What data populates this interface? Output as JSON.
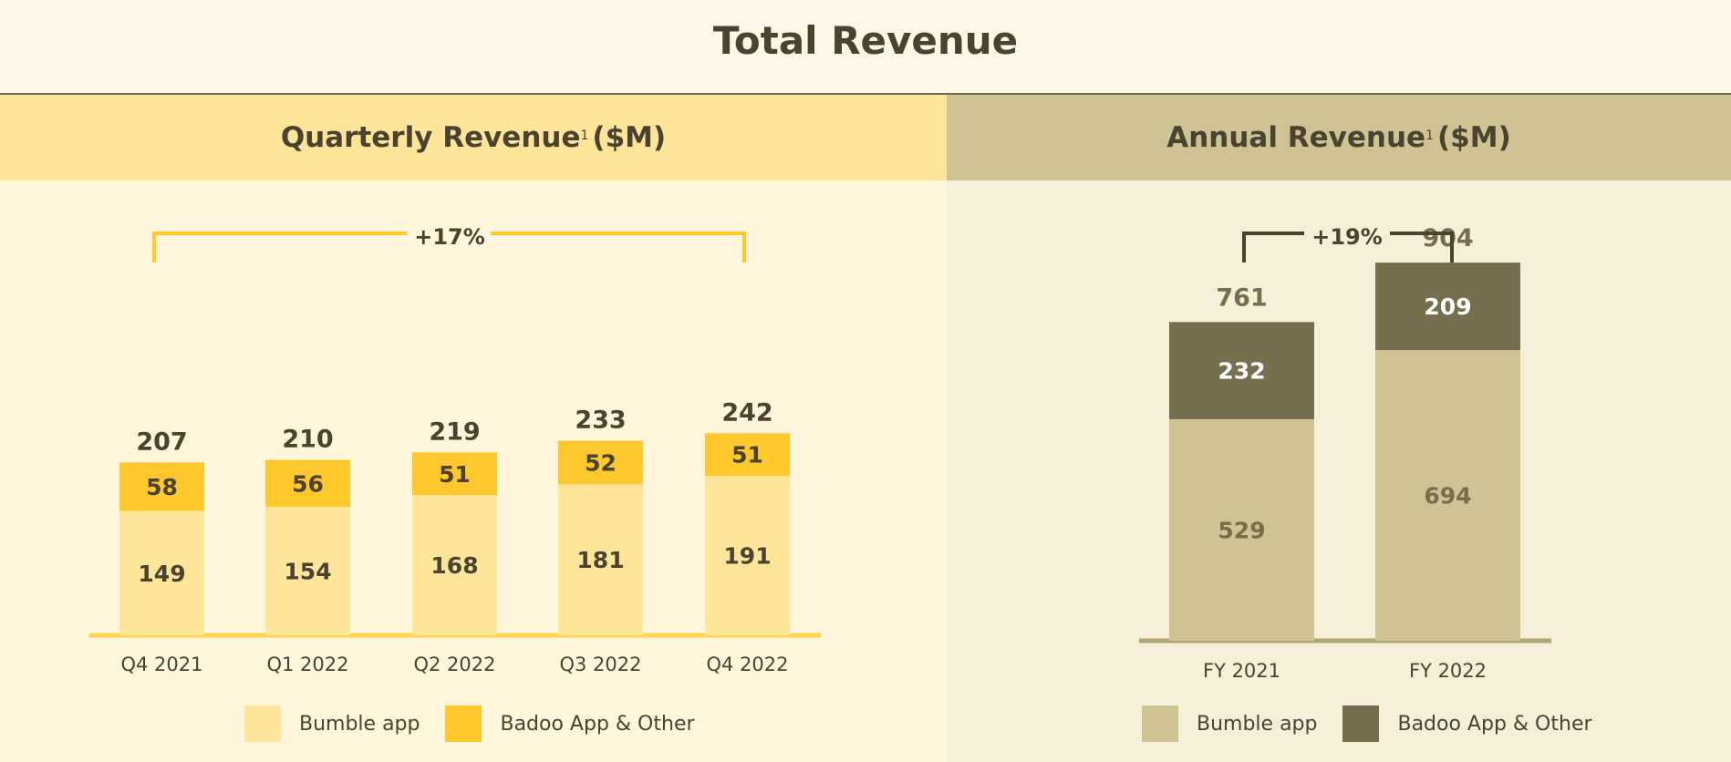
{
  "page": {
    "title": "Total Revenue"
  },
  "panels": {
    "quarterly": {
      "heading": "Quarterly Revenue",
      "sup": "1",
      "unit": "($M)",
      "growth": "+17%"
    },
    "annual": {
      "heading": "Annual Revenue",
      "sup": "1",
      "unit": "($M)",
      "growth": "+19%"
    }
  },
  "colors": {
    "bumble_q": "#ffe599",
    "badoo_q": "#ffc82c",
    "axis_q": "#ffd54f",
    "bumble_a": "#cfc394",
    "badoo_a": "#756f4e",
    "axis_a": "#b3a574",
    "text": "#4a4330",
    "annual_total": "#756f4e"
  },
  "chart_data": [
    {
      "type": "bar",
      "stacked": true,
      "title": "Quarterly Revenue",
      "categories": [
        "Q4 2021",
        "Q1 2022",
        "Q2 2022",
        "Q3 2022",
        "Q4 2022"
      ],
      "series": [
        {
          "name": "Bumble app",
          "values": [
            149,
            154,
            168,
            181,
            191
          ]
        },
        {
          "name": "Badoo App & Other",
          "values": [
            58,
            56,
            51,
            52,
            51
          ]
        }
      ],
      "totals": [
        207,
        210,
        219,
        233,
        242
      ],
      "annotation": "+17%",
      "legend": "bottom"
    },
    {
      "type": "bar",
      "stacked": true,
      "title": "Annual Revenue",
      "categories": [
        "FY 2021",
        "FY 2022"
      ],
      "series": [
        {
          "name": "Bumble app",
          "values": [
            529,
            694
          ]
        },
        {
          "name": "Badoo App & Other",
          "values": [
            232,
            209
          ]
        }
      ],
      "totals": [
        761,
        904
      ],
      "annotation": "+19%",
      "legend": "bottom"
    }
  ]
}
